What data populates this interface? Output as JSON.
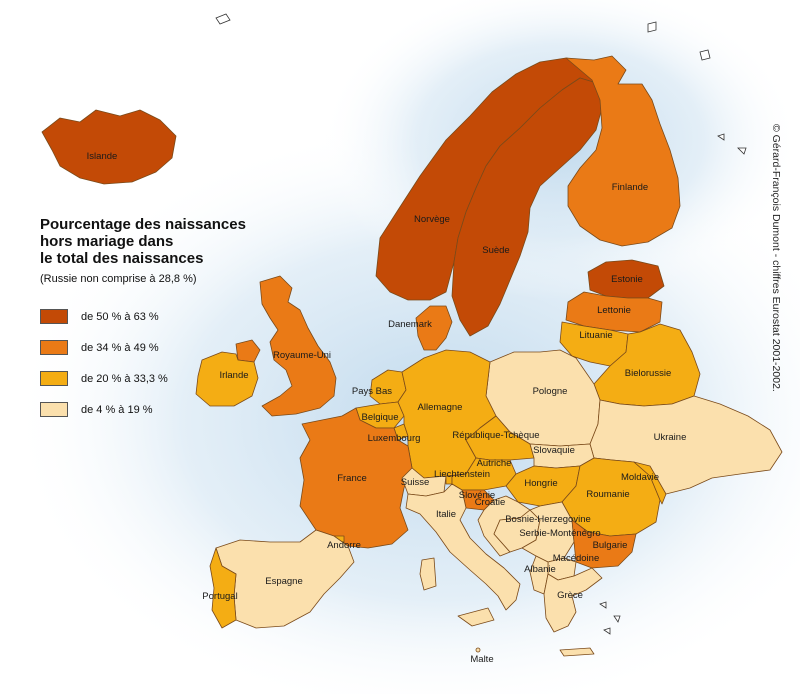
{
  "legend": {
    "title_lines": [
      "Pourcentage des naissances",
      "hors mariage dans",
      "le total des naissances"
    ],
    "note": "(Russie non comprise à 28,8 %)",
    "classes": [
      {
        "label": "de 50 % à 63 %",
        "color": "#c34a06"
      },
      {
        "label": "de 34 % à 49 %",
        "color": "#ea7a16"
      },
      {
        "label": "de 20 % à 33,3 %",
        "color": "#f4ad14"
      },
      {
        "label": "de 4 % à 19 %",
        "color": "#fbe0ad"
      }
    ]
  },
  "credit": "© Gérard-François Dumont - chiffres Eurostat 2001-2002.",
  "colors": {
    "sea": "#ffffff",
    "sea_glow": "#bcd7ec",
    "border": "#7a4a1a"
  },
  "countries": {
    "islande": {
      "label": "Islande",
      "class": 0
    },
    "norvege": {
      "label": "Norvège",
      "class": 0
    },
    "suede": {
      "label": "Suède",
      "class": 0
    },
    "finlande": {
      "label": "Finlande",
      "class": 1
    },
    "estonie": {
      "label": "Estonie",
      "class": 0
    },
    "lettonie": {
      "label": "Lettonie",
      "class": 1
    },
    "lituanie": {
      "label": "Lituanie",
      "class": 2
    },
    "danemark": {
      "label": "Danemark",
      "class": 1
    },
    "royaume_uni": {
      "label": "Royaume-Uni",
      "class": 1
    },
    "irlande": {
      "label": "Irlande",
      "class": 2
    },
    "bielorussie": {
      "label": "Bielorussie",
      "class": 2
    },
    "pologne": {
      "label": "Pologne",
      "class": 3
    },
    "pays_bas": {
      "label": "Pays Bas",
      "class": 2
    },
    "belgique": {
      "label": "Belgique",
      "class": 2
    },
    "luxembourg": {
      "label": "Luxembourg",
      "class": 2
    },
    "allemagne": {
      "label": "Allemagne",
      "class": 2
    },
    "republique_tcheque": {
      "label": "République-Tchèque",
      "class": 2
    },
    "slovaquie": {
      "label": "Slovaquie",
      "class": 3
    },
    "ukraine": {
      "label": "Ukraine",
      "class": 3
    },
    "france": {
      "label": "France",
      "class": 1
    },
    "suisse": {
      "label": "Suisse",
      "class": 3
    },
    "liechtenstein": {
      "label": "Liechtenstein",
      "class": 2
    },
    "autriche": {
      "label": "Autriche",
      "class": 2
    },
    "hongrie": {
      "label": "Hongrie",
      "class": 2
    },
    "moldavie": {
      "label": "Moldavie",
      "class": 2
    },
    "roumanie": {
      "label": "Roumanie",
      "class": 2
    },
    "slovenie": {
      "label": "Slovénie",
      "class": 1
    },
    "croatie": {
      "label": "Croatie",
      "class": 3
    },
    "italie": {
      "label": "Italie",
      "class": 3
    },
    "bosnie_herzegovine": {
      "label": "Bosnie-Herzegovine",
      "class": 3
    },
    "serbie_montenegro": {
      "label": "Serbie-Monténégro",
      "class": 3
    },
    "bulgarie": {
      "label": "Bulgarie",
      "class": 1
    },
    "macedoine": {
      "label": "Macédoine",
      "class": 3
    },
    "albanie": {
      "label": "Albanie",
      "class": 3
    },
    "grece": {
      "label": "Grèce",
      "class": 3
    },
    "andorre": {
      "label": "Andorre",
      "class": 2
    },
    "espagne": {
      "label": "Espagne",
      "class": 3
    },
    "portugal": {
      "label": "Portugal",
      "class": 2
    },
    "malte": {
      "label": "Malte",
      "class": 3
    }
  }
}
